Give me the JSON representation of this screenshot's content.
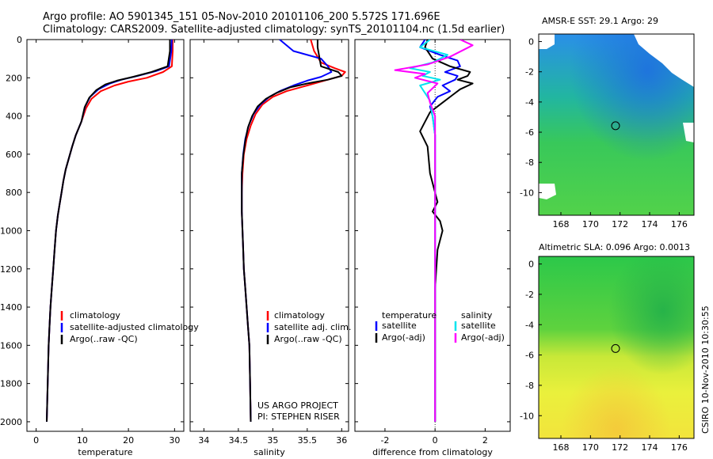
{
  "header": {
    "line1": "Argo profile: AO 5901345_151 05-Nov-2010 20101106_200 5.572S 171.696E",
    "line2": "Climatology: CARS2009. Satellite-adjusted climatology: synTS_20101104.nc (1.5d earlier)"
  },
  "footer": {
    "project": "US ARGO PROJECT",
    "pi": "PI: STEPHEN RISER",
    "stamp": "CSIRO 10-Nov-2010 10:30:55"
  },
  "colors": {
    "climatology": "#ff0000",
    "satellite": "#0000ff",
    "argo": "#000000",
    "satellite_sal": "#00e5ee",
    "argo_sal": "#ff00ff"
  },
  "chart_data": [
    {
      "id": "temperature",
      "type": "line",
      "xlabel": "temperature",
      "ylabel": "",
      "xlim": [
        -2,
        32
      ],
      "ylim": [
        2050,
        0
      ],
      "xticks": [
        0,
        10,
        20,
        30
      ],
      "yticks": [
        0,
        200,
        400,
        600,
        800,
        1000,
        1200,
        1400,
        1600,
        1800,
        2000
      ],
      "legend": [
        "climatology",
        "satellite-adjusted climatology",
        "Argo(..raw -QC)"
      ],
      "series": [
        {
          "name": "climatology",
          "color": "#ff0000",
          "x": [
            29.6,
            29.6,
            29.4,
            27.5,
            24,
            20,
            17,
            14,
            12,
            10.8,
            9.8,
            8.6,
            7.8,
            7.1,
            6.4,
            5.9,
            5.5,
            5.1,
            4.7,
            4.3,
            4.0,
            3.7,
            3.4,
            3.1,
            2.9,
            2.7,
            2.5,
            2.3
          ],
          "y": [
            0,
            60,
            140,
            170,
            200,
            220,
            240,
            270,
            310,
            360,
            430,
            500,
            560,
            620,
            680,
            740,
            800,
            860,
            920,
            1000,
            1100,
            1200,
            1300,
            1400,
            1500,
            1600,
            1800,
            2000
          ]
        },
        {
          "name": "satellite-adjusted climatology",
          "color": "#0000ff",
          "x": [
            29.4,
            29.3,
            28.8,
            26,
            22,
            18.5,
            16,
            13.5,
            11.7,
            10.6,
            9.8,
            8.6,
            7.8,
            7.1,
            6.4,
            5.9,
            5.5,
            5.1,
            4.7,
            4.3,
            4.0,
            3.7,
            3.4,
            3.1,
            2.9,
            2.7,
            2.5,
            2.3
          ],
          "y": [
            0,
            60,
            140,
            165,
            190,
            210,
            230,
            260,
            300,
            350,
            430,
            500,
            560,
            620,
            680,
            740,
            800,
            860,
            920,
            1000,
            1100,
            1200,
            1300,
            1400,
            1500,
            1600,
            1800,
            2000
          ]
        },
        {
          "name": "Argo(..raw -QC)",
          "color": "#000000",
          "x": [
            29.0,
            29.0,
            28.5,
            25,
            21,
            17.5,
            15,
            13,
            11.5,
            10.5,
            9.8,
            8.6,
            7.8,
            7.1,
            6.4,
            5.9,
            5.5,
            5.1,
            4.7,
            4.3,
            4.0,
            3.7,
            3.4,
            3.1,
            2.9,
            2.7,
            2.5,
            2.3
          ],
          "y": [
            0,
            60,
            140,
            170,
            195,
            215,
            235,
            265,
            305,
            355,
            430,
            500,
            560,
            620,
            680,
            740,
            800,
            860,
            920,
            1000,
            1100,
            1200,
            1300,
            1400,
            1500,
            1600,
            1800,
            2000
          ]
        }
      ]
    },
    {
      "id": "salinity",
      "type": "line",
      "xlabel": "salinity",
      "ylabel": "",
      "xlim": [
        33.8,
        36.1
      ],
      "ylim": [
        2050,
        0
      ],
      "xticks": [
        34,
        34.5,
        35,
        35.5,
        36
      ],
      "xtick_labels": [
        "34",
        "34.5",
        "35",
        "35.5",
        "36"
      ],
      "legend": [
        "climatology",
        "satellite adj. clim.",
        "Argo(..raw -QC)"
      ],
      "series": [
        {
          "name": "climatology",
          "color": "#ff0000",
          "x": [
            35.55,
            35.6,
            35.7,
            35.9,
            36.05,
            36.0,
            35.8,
            35.5,
            35.2,
            35.0,
            34.85,
            34.75,
            34.68,
            34.62,
            34.58,
            34.56,
            34.55,
            34.55,
            34.56,
            34.57,
            34.58,
            34.6,
            34.62,
            34.64,
            34.66,
            34.67,
            34.68
          ],
          "y": [
            0,
            60,
            120,
            150,
            170,
            190,
            210,
            240,
            270,
            300,
            340,
            390,
            450,
            520,
            600,
            700,
            800,
            900,
            1000,
            1100,
            1200,
            1300,
            1400,
            1500,
            1600,
            1800,
            2000
          ]
        },
        {
          "name": "satellite adj. clim.",
          "color": "#0000ff",
          "x": [
            35.1,
            35.3,
            35.7,
            35.8,
            35.85,
            35.7,
            35.5,
            35.3,
            35.1,
            34.95,
            34.82,
            34.72,
            34.65,
            34.6,
            34.57,
            34.55,
            34.55,
            34.55,
            34.56,
            34.57,
            34.58,
            34.6,
            34.62,
            34.64,
            34.66,
            34.67,
            34.68
          ],
          "y": [
            0,
            60,
            100,
            140,
            170,
            195,
            215,
            240,
            270,
            300,
            340,
            390,
            450,
            520,
            600,
            700,
            800,
            900,
            1000,
            1100,
            1200,
            1300,
            1400,
            1500,
            1600,
            1800,
            2000
          ]
        },
        {
          "name": "Argo(..raw -QC)",
          "color": "#000000",
          "x": [
            35.65,
            35.65,
            35.7,
            35.95,
            36.0,
            35.8,
            35.5,
            35.25,
            35.05,
            34.9,
            34.78,
            34.7,
            34.64,
            34.6,
            34.57,
            34.55,
            34.55,
            34.55,
            34.56,
            34.57,
            34.58,
            34.6,
            34.62,
            34.64,
            34.66,
            34.67,
            34.68
          ],
          "y": [
            0,
            40,
            140,
            170,
            190,
            210,
            230,
            250,
            280,
            310,
            350,
            400,
            460,
            530,
            610,
            700,
            800,
            900,
            1000,
            1100,
            1200,
            1300,
            1400,
            1500,
            1600,
            1800,
            2000
          ]
        }
      ]
    },
    {
      "id": "difference",
      "type": "line",
      "xlabel": "difference from climatology",
      "ylabel": "",
      "xlim": [
        -3.2,
        3.0
      ],
      "ylim": [
        2050,
        0
      ],
      "xticks": [
        -2,
        0,
        2
      ],
      "legend_groups": [
        {
          "title": "temperature",
          "entries": [
            "satellite",
            "Argo(-adj)"
          ]
        },
        {
          "title": "salinity",
          "entries": [
            "satellite",
            "Argo(-adj)"
          ]
        }
      ],
      "series": [
        {
          "name": "temperature satellite",
          "color": "#0000ff",
          "x": [
            -0.4,
            -0.6,
            0.2,
            0.9,
            1.0,
            0.4,
            0.9,
            0.8,
            0.3,
            0.6,
            0.1,
            -0.2,
            -0.1,
            -0.05,
            0,
            0,
            0,
            0,
            0,
            0,
            0,
            0,
            0,
            0,
            0
          ],
          "y": [
            0,
            40,
            80,
            110,
            140,
            170,
            190,
            210,
            240,
            270,
            300,
            350,
            400,
            450,
            500,
            600,
            700,
            800,
            1000,
            1200,
            1400,
            1600,
            1800,
            1900,
            2000
          ]
        },
        {
          "name": "temperature Argo(-adj)",
          "color": "#000000",
          "x": [
            -0.3,
            -0.4,
            -0.1,
            0.6,
            1.4,
            1.3,
            0.9,
            1.5,
            1.0,
            0.7,
            0.3,
            -0.2,
            -0.4,
            -0.6,
            -0.3,
            -0.2,
            0.1,
            -0.1,
            0.2,
            0.3,
            0.1,
            0,
            0,
            0,
            0
          ],
          "y": [
            0,
            40,
            100,
            140,
            170,
            190,
            210,
            230,
            260,
            290,
            330,
            380,
            430,
            480,
            560,
            700,
            850,
            900,
            950,
            1000,
            1100,
            1300,
            1600,
            1900,
            2000
          ]
        },
        {
          "name": "salinity satellite",
          "color": "#00e5ee",
          "x": [
            -0.2,
            -0.6,
            0.5,
            -0.1,
            -1.0,
            -0.2,
            -0.5,
            0.2,
            -0.6,
            -0.4,
            -0.2,
            -0.1,
            0,
            0,
            0,
            0,
            0,
            0,
            0,
            0,
            0
          ],
          "y": [
            0,
            40,
            80,
            120,
            150,
            170,
            190,
            210,
            240,
            280,
            320,
            400,
            500,
            600,
            800,
            1000,
            1200,
            1400,
            1600,
            1800,
            2000
          ]
        },
        {
          "name": "salinity Argo(-adj)",
          "color": "#ff00ff",
          "x": [
            1.0,
            1.5,
            0.6,
            -0.3,
            -1.6,
            -0.4,
            -0.8,
            0.1,
            -0.3,
            -0.2,
            0,
            0,
            0,
            0,
            0,
            0,
            0
          ],
          "y": [
            0,
            30,
            90,
            130,
            160,
            180,
            200,
            230,
            280,
            330,
            400,
            500,
            800,
            1100,
            1400,
            1700,
            2000
          ]
        }
      ]
    },
    {
      "id": "sst_map",
      "type": "heatmap",
      "title": "AMSR-E SST: 29.1 Argo: 29",
      "xlim": [
        166.5,
        177
      ],
      "ylim": [
        -11.5,
        0.5
      ],
      "xticks": [
        168,
        170,
        172,
        174,
        176
      ],
      "yticks": [
        0,
        -2,
        -4,
        -6,
        -8,
        -10
      ],
      "marker": {
        "lon": 171.696,
        "lat": -5.572
      }
    },
    {
      "id": "sla_map",
      "type": "heatmap",
      "title": "Altimetric SLA: 0.096 Argo: 0.0013",
      "xlim": [
        166.5,
        177
      ],
      "ylim": [
        -11.5,
        0.5
      ],
      "xticks": [
        168,
        170,
        172,
        174,
        176
      ],
      "yticks": [
        0,
        -2,
        -4,
        -6,
        -8,
        -10
      ],
      "marker": {
        "lon": 171.696,
        "lat": -5.572
      }
    }
  ]
}
